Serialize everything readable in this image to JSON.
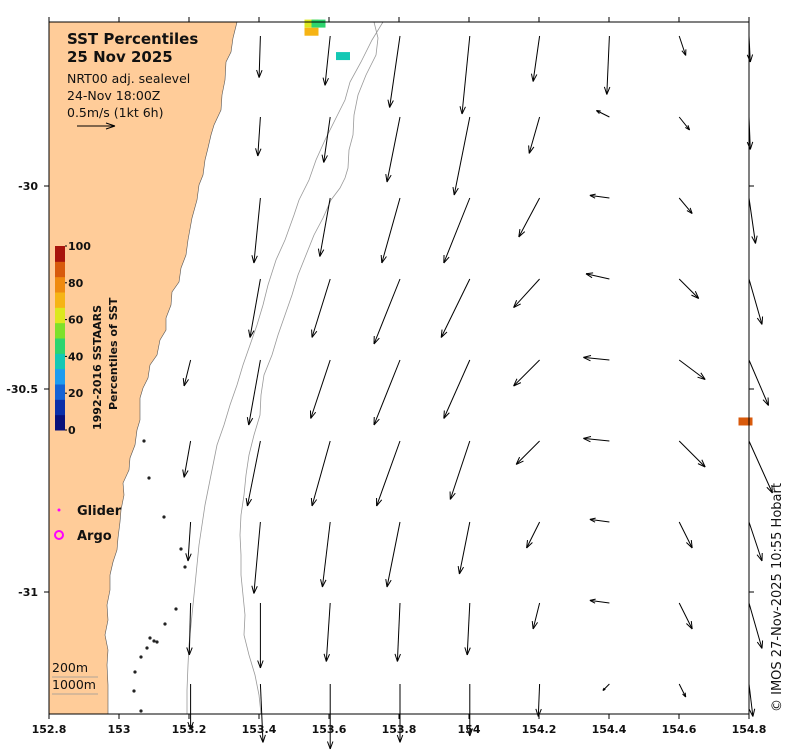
{
  "title": {
    "line1": "SST Percentiles",
    "line2": "25 Nov 2025"
  },
  "info": {
    "line1": "NRT00 adj. sealevel",
    "line2": "24-Nov 18:00Z",
    "line3": "0.5m/s (1kt 6h)"
  },
  "colorbar": {
    "title_line1": "1992-2016 SSTAARS",
    "title_line2": "Percentiles of SST",
    "ticks": [
      "100",
      "80",
      "60",
      "40",
      "20",
      "0"
    ],
    "colors": [
      "#08107a",
      "#0b2fa8",
      "#1462d4",
      "#1e9cf0",
      "#14c8b4",
      "#2ed46e",
      "#7ee02a",
      "#dce81e",
      "#f6b414",
      "#ef8a10",
      "#d85a0c",
      "#a8140c"
    ]
  },
  "legend": {
    "glider_label": "Glider",
    "argo_label": "Argo",
    "glider_color": "#ff00ff",
    "argo_color": "#ff00ff"
  },
  "scale": {
    "depth1": "200m",
    "depth2": "1000m"
  },
  "credit": "© IMOS 27-Nov-2025 10:55 Hobart",
  "axes": {
    "x_ticks": [
      "152.8",
      "153",
      "153.2",
      "153.4",
      "153.6",
      "153.8",
      "154",
      "154.2",
      "154.4",
      "154.6",
      "154.8"
    ],
    "y_ticks": [
      "-30",
      "-30.5",
      "-31"
    ]
  },
  "colors": {
    "land": "#ffcc99",
    "ocean": "#ffffff",
    "arrow": "#000000",
    "isobath": "#999999"
  },
  "sst_cells": [
    {
      "lon": 153.55,
      "lat": -29.6,
      "color": "#dce81e"
    },
    {
      "lon": 153.57,
      "lat": -29.6,
      "color": "#2ed46e"
    },
    {
      "lon": 153.55,
      "lat": -29.62,
      "color": "#f6b414"
    },
    {
      "lon": 153.64,
      "lat": -29.68,
      "color": "#14c8b4"
    },
    {
      "lon": 154.79,
      "lat": -30.58,
      "color": "#d85a0c"
    }
  ]
}
